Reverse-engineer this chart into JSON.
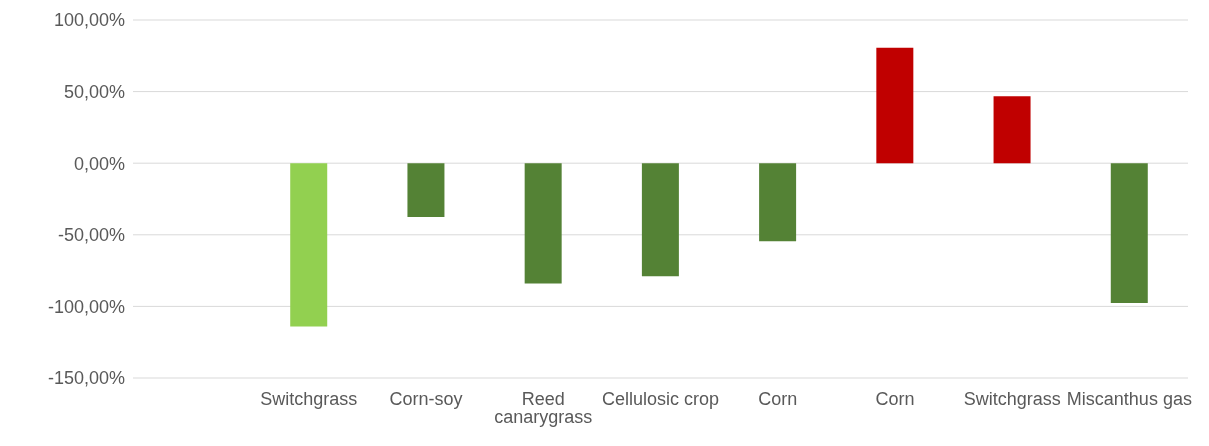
{
  "chart_data": {
    "type": "bar",
    "categories": [
      null,
      "Switchgrass",
      "Corn-soy",
      "Reed canarygrass",
      "Cellulosic crop",
      "Corn",
      "Corn",
      "Switchgrass",
      "Miscanthus gas"
    ],
    "values": [
      null,
      -114,
      -37.5,
      -84,
      -79,
      -54.5,
      80.7,
      46.7,
      -97.7
    ],
    "colors": [
      "#548235",
      "#92d050",
      "#548235",
      "#548235",
      "#548235",
      "#548235",
      "#c00000",
      "#c00000",
      "#548235"
    ],
    "ylim": [
      -150,
      100
    ],
    "yticks": [
      {
        "value": -150,
        "label": "-150,00%"
      },
      {
        "value": -100,
        "label": "-100,00%"
      },
      {
        "value": -50,
        "label": "-50,00%"
      },
      {
        "value": 0,
        "label": "0,00%"
      },
      {
        "value": 50,
        "label": "50,00%"
      },
      {
        "value": 100,
        "label": "100,00%"
      }
    ],
    "grid": "y",
    "legend": false
  }
}
